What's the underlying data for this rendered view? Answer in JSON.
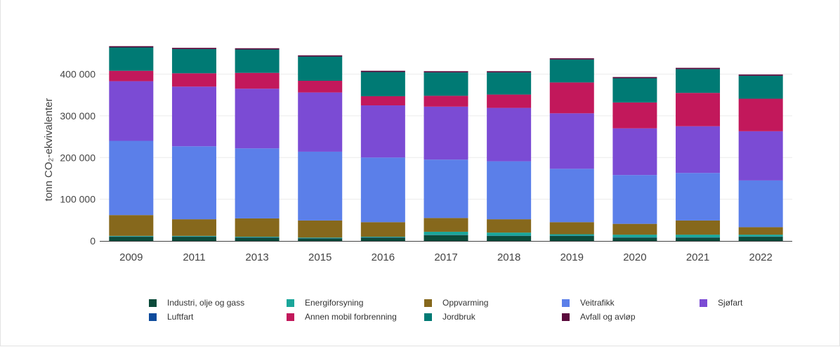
{
  "chart_data": {
    "type": "bar",
    "stacked": true,
    "title": "",
    "xlabel": "",
    "ylabel": "tonn CO₂-ekvivalenter",
    "ylim": [
      0,
      480000
    ],
    "yticks": [
      0,
      100000,
      200000,
      300000,
      400000
    ],
    "ytick_labels": [
      "0",
      "100 000",
      "200 000",
      "300 000",
      "400 000"
    ],
    "categories": [
      "2009",
      "2011",
      "2013",
      "2015",
      "2016",
      "2017",
      "2018",
      "2019",
      "2020",
      "2021",
      "2022"
    ],
    "series": [
      {
        "name": "Industri, olje og gass",
        "color": "#0b4a3a",
        "values": [
          10000,
          10000,
          8000,
          6000,
          8000,
          14000,
          12000,
          12000,
          8000,
          8000,
          10000
        ]
      },
      {
        "name": "Luftfart",
        "color": "#0d4b9c",
        "values": [
          500,
          500,
          500,
          500,
          500,
          500,
          500,
          500,
          500,
          500,
          500
        ]
      },
      {
        "name": "Energiforsyning",
        "color": "#1aa69a",
        "values": [
          1500,
          1500,
          1500,
          1500,
          1500,
          7500,
          7500,
          3500,
          6500,
          6500,
          4500
        ]
      },
      {
        "name": "Annen mobil forbrenning",
        "color": "#c2185b",
        "values": [
          25000,
          32000,
          38000,
          28000,
          22000,
          26000,
          32000,
          74000,
          62000,
          80000,
          78000
        ]
      },
      {
        "name": "Oppvarming",
        "color": "#86681c",
        "values": [
          50000,
          40000,
          44000,
          41000,
          35000,
          33000,
          32000,
          29000,
          26000,
          34000,
          18000
        ]
      },
      {
        "name": "Jordbruk",
        "color": "#007a74",
        "values": [
          56000,
          58000,
          56000,
          58000,
          58000,
          56000,
          53000,
          55000,
          58000,
          57000,
          55000
        ]
      },
      {
        "name": "Veitrafikk",
        "color": "#5b7fe9",
        "values": [
          178000,
          175000,
          168000,
          165000,
          155000,
          140000,
          139000,
          128000,
          117000,
          114000,
          112000
        ]
      },
      {
        "name": "Avfall og avløp",
        "color": "#5a0a3c",
        "values": [
          3000,
          3000,
          3000,
          3000,
          3000,
          3000,
          3000,
          3000,
          3000,
          3000,
          3000
        ]
      },
      {
        "name": "Sjøfart",
        "color": "#7b4bd4",
        "values": [
          143000,
          143000,
          143000,
          142000,
          125000,
          127000,
          128000,
          133000,
          112000,
          112000,
          118000
        ]
      }
    ],
    "stack_order": [
      "Industri, olje og gass",
      "Luftfart",
      "Energiforsyning",
      "Oppvarming",
      "Veitrafikk",
      "Sjøfart",
      "Annen mobil forbrenning",
      "Jordbruk",
      "Avfall og avløp"
    ],
    "legend": {
      "placement": "bottom",
      "rows": [
        [
          "Industri, olje og gass",
          "Energiforsyning",
          "Oppvarming",
          "Veitrafikk",
          "Sjøfart"
        ],
        [
          "Luftfart",
          "Annen mobil forbrenning",
          "Jordbruk",
          "Avfall og avløp"
        ]
      ]
    },
    "grid": true
  }
}
